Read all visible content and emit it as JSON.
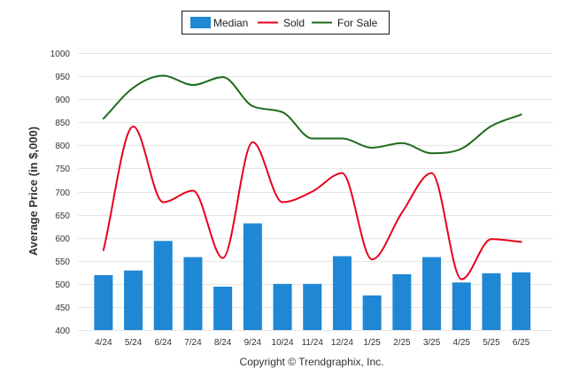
{
  "chart_data": {
    "type": "bar",
    "categories": [
      "4/24",
      "5/24",
      "6/24",
      "7/24",
      "8/24",
      "9/24",
      "10/24",
      "11/24",
      "12/24",
      "1/25",
      "2/25",
      "3/25",
      "4/25",
      "5/25",
      "6/25"
    ],
    "series": [
      {
        "name": "Median",
        "type": "bar",
        "color": "#1f87d3",
        "values": [
          519,
          529,
          593,
          558,
          494,
          631,
          500,
          500,
          560,
          475,
          521,
          558,
          503,
          523,
          525
        ]
      },
      {
        "name": "Sold",
        "type": "line",
        "color": "#e8001c",
        "values": [
          573,
          841,
          677,
          702,
          556,
          807,
          677,
          700,
          740,
          553,
          654,
          740,
          510,
          597,
          591
        ]
      },
      {
        "name": "For Sale",
        "type": "line",
        "color": "#1c6b1c",
        "values": [
          858,
          925,
          951,
          931,
          948,
          885,
          872,
          815,
          815,
          795,
          805,
          783,
          793,
          842,
          867
        ]
      }
    ],
    "ylabel": "Average Price (in $,000)",
    "ylim": [
      400,
      1000
    ],
    "yticks": [
      "400",
      "450",
      "500",
      "550",
      "600",
      "650",
      "700",
      "750",
      "800",
      "850",
      "900",
      "950",
      "1000"
    ],
    "grid": true,
    "legend_position": "top-center"
  },
  "footer": {
    "copyright": "Copyright © Trendgraphix, Inc."
  }
}
